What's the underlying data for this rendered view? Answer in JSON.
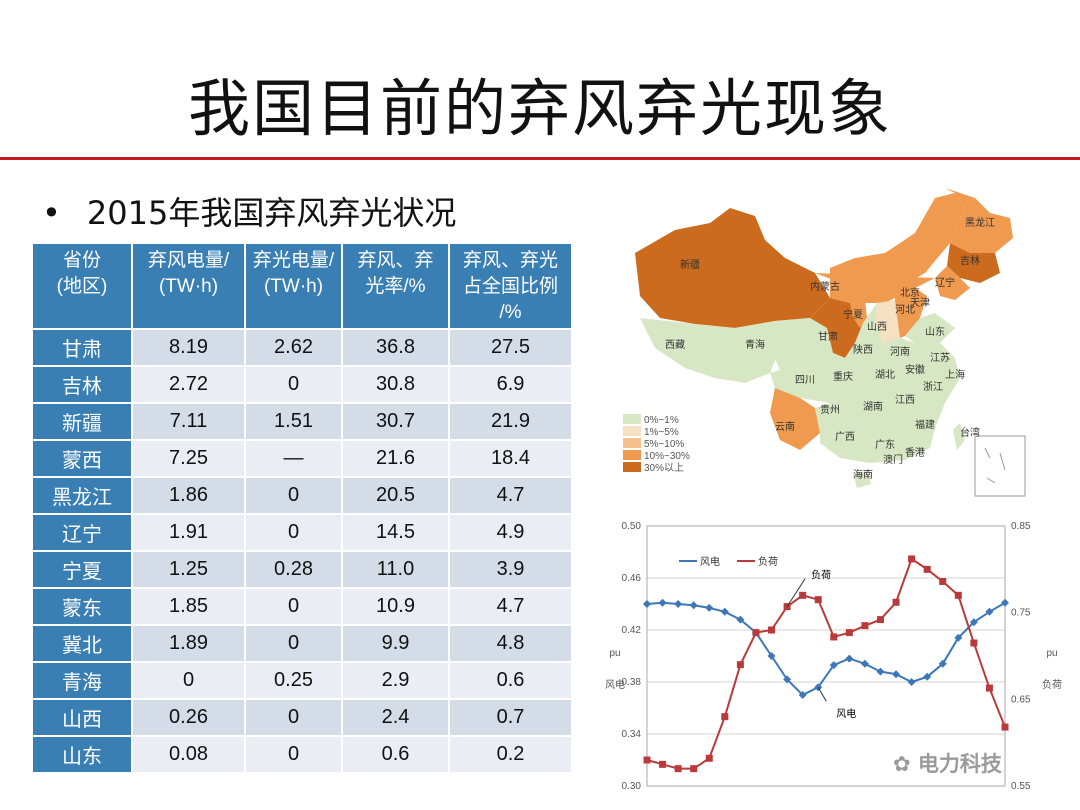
{
  "title": "我国目前的弃风弃光现象",
  "bullet": "2015年我国弃风弃光状况",
  "table": {
    "headers": [
      "省份\n(地区)",
      "弃风电量/\n(TW·h)",
      "弃光电量/\n(TW·h)",
      "弃风、弃\n光率/%",
      "弃风、弃光\n占全国比例\n/%"
    ],
    "rows": [
      [
        "甘肃",
        "8.19",
        "2.62",
        "36.8",
        "27.5"
      ],
      [
        "吉林",
        "2.72",
        "0",
        "30.8",
        "6.9"
      ],
      [
        "新疆",
        "7.11",
        "1.51",
        "30.7",
        "21.9"
      ],
      [
        "蒙西",
        "7.25",
        "—",
        "21.6",
        "18.4"
      ],
      [
        "黑龙江",
        "1.86",
        "0",
        "20.5",
        "4.7"
      ],
      [
        "辽宁",
        "1.91",
        "0",
        "14.5",
        "4.9"
      ],
      [
        "宁夏",
        "1.25",
        "0.28",
        "11.0",
        "3.9"
      ],
      [
        "蒙东",
        "1.85",
        "0",
        "10.9",
        "4.7"
      ],
      [
        "冀北",
        "1.89",
        "0",
        "9.9",
        "4.8"
      ],
      [
        "青海",
        "0",
        "0.25",
        "2.9",
        "0.6"
      ],
      [
        "山西",
        "0.26",
        "0",
        "2.4",
        "0.7"
      ],
      [
        "山东",
        "0.08",
        "0",
        "0.6",
        "0.2"
      ]
    ]
  },
  "map": {
    "colors": {
      "c1": "#d7e6c3",
      "c2": "#f6e0c2",
      "c3": "#f5c08c",
      "c4": "#ef9a4e",
      "c5": "#cc6b1d"
    },
    "legend": [
      {
        "label": "0%~1%",
        "color": "#d7e6c3"
      },
      {
        "label": "1%~5%",
        "color": "#f6e0c2"
      },
      {
        "label": "5%~10%",
        "color": "#f5c08c"
      },
      {
        "label": "10%~30%",
        "color": "#ef9a4e"
      },
      {
        "label": "30%以上",
        "color": "#cc6b1d"
      }
    ],
    "labels": [
      "新疆",
      "西藏",
      "青海",
      "甘肃",
      "内蒙古",
      "宁夏",
      "山西",
      "河北",
      "北京",
      "天津",
      "辽宁",
      "吉林",
      "黑龙江",
      "陕西",
      "河南",
      "山东",
      "四川",
      "重庆",
      "湖北",
      "安徽",
      "江苏",
      "上海",
      "云南",
      "贵州",
      "湖南",
      "江西",
      "浙江",
      "广西",
      "广东",
      "福建",
      "台湾",
      "香港",
      "澳门",
      "海南"
    ]
  },
  "chart_data": {
    "type": "line",
    "x": [
      1,
      2,
      3,
      4,
      5,
      6,
      7,
      8,
      9,
      10,
      11,
      12,
      13,
      14,
      15,
      16,
      17,
      18,
      19,
      20,
      21,
      22,
      23,
      24
    ],
    "y_left_label": "风电",
    "y_left_unit": "pu",
    "y_right_label": "负荷",
    "y_right_unit": "pu",
    "y_left_ticks": [
      "0.50",
      "0.46",
      "0.42",
      "0.38",
      "0.34",
      "0.30"
    ],
    "y_right_ticks": [
      "0.85",
      "0.75",
      "0.65",
      "0.55"
    ],
    "ylim_left": [
      0.3,
      0.5
    ],
    "ylim_right": [
      0.55,
      0.85
    ],
    "grid": true,
    "legend_position": "top-left",
    "series": [
      {
        "name": "风电",
        "axis": "left",
        "color": "#3d77b8",
        "values": [
          0.44,
          0.441,
          0.44,
          0.439,
          0.437,
          0.434,
          0.428,
          0.418,
          0.4,
          0.382,
          0.37,
          0.376,
          0.393,
          0.398,
          0.394,
          0.388,
          0.386,
          0.38,
          0.384,
          0.394,
          0.414,
          0.426,
          0.434,
          0.441
        ]
      },
      {
        "name": "负荷",
        "axis": "right",
        "color": "#b83a3a",
        "values": [
          0.58,
          0.575,
          0.57,
          0.57,
          0.582,
          0.63,
          0.69,
          0.727,
          0.73,
          0.757,
          0.77,
          0.765,
          0.722,
          0.727,
          0.735,
          0.742,
          0.762,
          0.812,
          0.8,
          0.786,
          0.77,
          0.715,
          0.663,
          0.618
        ]
      }
    ],
    "annotations": [
      {
        "text": "负荷",
        "series": "负荷"
      },
      {
        "text": "风电",
        "series": "风电"
      }
    ]
  },
  "watermark": "电力科技"
}
